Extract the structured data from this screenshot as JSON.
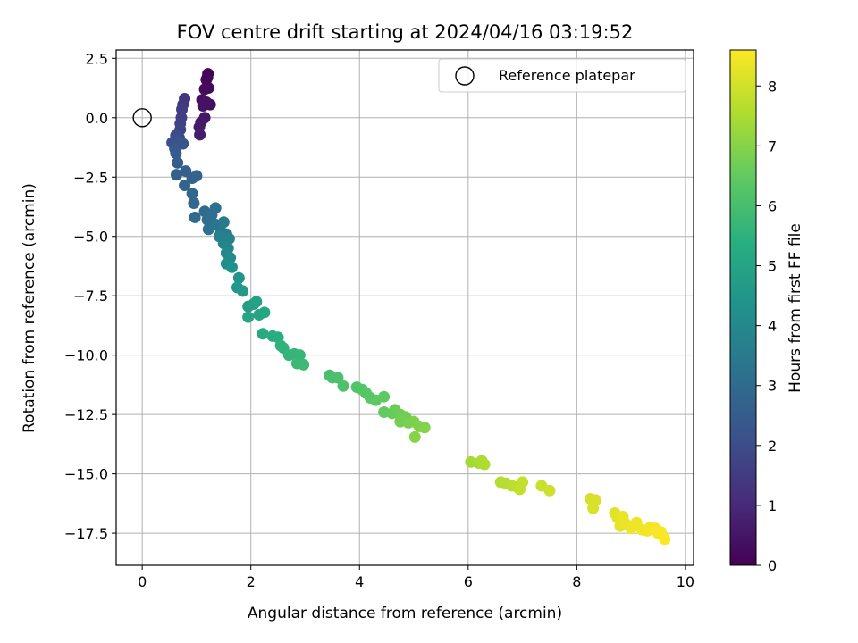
{
  "chart_data": {
    "type": "scatter",
    "title": "FOV centre drift starting at 2024/04/16 03:19:52",
    "xlabel": "Angular distance from reference (arcmin)",
    "ylabel": "Rotation from reference (arcmin)",
    "xlim": [
      -0.48,
      10.15
    ],
    "ylim": [
      -18.85,
      2.85
    ],
    "xticks": [
      0,
      2,
      4,
      6,
      8,
      10
    ],
    "xtick_labels": [
      "0",
      "2",
      "4",
      "6",
      "8",
      "10"
    ],
    "yticks": [
      2.5,
      0,
      -2.5,
      -5,
      -7.5,
      -10,
      -12.5,
      -15,
      -17.5
    ],
    "ytick_labels": [
      "2.5",
      "0.0",
      "−2.5",
      "−5.0",
      "−7.5",
      "−10.0",
      "−12.5",
      "−15.0",
      "−17.5"
    ],
    "grid": true,
    "colormap": "viridis",
    "colorbar": {
      "label": "Hours from first FF file",
      "range": [
        0,
        8.6
      ],
      "ticks": [
        0,
        1,
        2,
        3,
        4,
        5,
        6,
        7,
        8
      ],
      "tick_labels": [
        "0",
        "1",
        "2",
        "3",
        "4",
        "5",
        "6",
        "7",
        "8"
      ]
    },
    "legend": {
      "placement": "top-right",
      "entries": [
        "Reference platepar"
      ]
    },
    "reference_point": {
      "x": 0,
      "y": 0
    },
    "points": [
      {
        "x": 1.21,
        "y": 1.85,
        "t": 0.05
      },
      {
        "x": 1.2,
        "y": 1.7,
        "t": 0.1
      },
      {
        "x": 1.18,
        "y": 1.6,
        "t": 0.15
      },
      {
        "x": 1.22,
        "y": 1.25,
        "t": 0.2
      },
      {
        "x": 1.15,
        "y": 1.2,
        "t": 0.25
      },
      {
        "x": 1.25,
        "y": 0.55,
        "t": 0.3
      },
      {
        "x": 1.1,
        "y": 0.75,
        "t": 0.35
      },
      {
        "x": 1.18,
        "y": 0.65,
        "t": 0.4
      },
      {
        "x": 1.12,
        "y": 0.5,
        "t": 0.45
      },
      {
        "x": 1.15,
        "y": 0.0,
        "t": 0.5
      },
      {
        "x": 1.08,
        "y": -0.2,
        "t": 0.55
      },
      {
        "x": 1.05,
        "y": -0.4,
        "t": 0.6
      },
      {
        "x": 1.06,
        "y": -0.72,
        "t": 0.65
      },
      {
        "x": 0.78,
        "y": 0.8,
        "t": 1.3
      },
      {
        "x": 0.75,
        "y": 0.55,
        "t": 1.4
      },
      {
        "x": 0.73,
        "y": 0.35,
        "t": 1.5
      },
      {
        "x": 0.72,
        "y": 0.0,
        "t": 1.6
      },
      {
        "x": 0.7,
        "y": -0.25,
        "t": 1.7
      },
      {
        "x": 0.7,
        "y": -0.5,
        "t": 1.8
      },
      {
        "x": 0.68,
        "y": -0.85,
        "t": 1.9
      },
      {
        "x": 0.62,
        "y": -0.75,
        "t": 2.0
      },
      {
        "x": 0.55,
        "y": -1.05,
        "t": 2.1
      },
      {
        "x": 0.65,
        "y": -1.0,
        "t": 2.2
      },
      {
        "x": 0.75,
        "y": -1.1,
        "t": 2.3
      },
      {
        "x": 0.6,
        "y": -1.3,
        "t": 2.4
      },
      {
        "x": 0.62,
        "y": -1.5,
        "t": 2.45
      },
      {
        "x": 0.65,
        "y": -1.9,
        "t": 2.5
      },
      {
        "x": 0.8,
        "y": -2.25,
        "t": 2.6
      },
      {
        "x": 0.63,
        "y": -2.4,
        "t": 2.65
      },
      {
        "x": 0.92,
        "y": -2.55,
        "t": 2.7
      },
      {
        "x": 1.0,
        "y": -2.45,
        "t": 2.75
      },
      {
        "x": 0.78,
        "y": -2.85,
        "t": 2.8
      },
      {
        "x": 0.92,
        "y": -3.2,
        "t": 2.85
      },
      {
        "x": 0.95,
        "y": -3.6,
        "t": 2.9
      },
      {
        "x": 0.97,
        "y": -4.2,
        "t": 2.95
      },
      {
        "x": 1.15,
        "y": -3.95,
        "t": 3.0
      },
      {
        "x": 1.2,
        "y": -4.3,
        "t": 3.05
      },
      {
        "x": 1.28,
        "y": -4.1,
        "t": 3.1
      },
      {
        "x": 1.35,
        "y": -3.8,
        "t": 3.15
      },
      {
        "x": 1.22,
        "y": -4.7,
        "t": 3.2
      },
      {
        "x": 1.35,
        "y": -4.5,
        "t": 3.3
      },
      {
        "x": 1.45,
        "y": -4.8,
        "t": 3.4
      },
      {
        "x": 1.5,
        "y": -4.4,
        "t": 3.5
      },
      {
        "x": 1.55,
        "y": -4.9,
        "t": 3.6
      },
      {
        "x": 1.42,
        "y": -5.0,
        "t": 3.7
      },
      {
        "x": 1.6,
        "y": -5.1,
        "t": 3.75
      },
      {
        "x": 1.5,
        "y": -5.3,
        "t": 3.8
      },
      {
        "x": 1.58,
        "y": -5.5,
        "t": 3.9
      },
      {
        "x": 1.55,
        "y": -5.7,
        "t": 4.0
      },
      {
        "x": 1.62,
        "y": -5.9,
        "t": 4.1
      },
      {
        "x": 1.55,
        "y": -6.15,
        "t": 4.2
      },
      {
        "x": 1.65,
        "y": -6.3,
        "t": 4.3
      },
      {
        "x": 1.78,
        "y": -6.75,
        "t": 4.4
      },
      {
        "x": 1.75,
        "y": -7.15,
        "t": 4.5
      },
      {
        "x": 1.85,
        "y": -7.3,
        "t": 4.6
      },
      {
        "x": 1.95,
        "y": -7.95,
        "t": 4.7
      },
      {
        "x": 2.05,
        "y": -7.85,
        "t": 4.8
      },
      {
        "x": 2.1,
        "y": -7.75,
        "t": 4.9
      },
      {
        "x": 1.95,
        "y": -8.4,
        "t": 5.0
      },
      {
        "x": 2.15,
        "y": -8.3,
        "t": 5.05
      },
      {
        "x": 2.25,
        "y": -8.2,
        "t": 5.1
      },
      {
        "x": 2.22,
        "y": -9.1,
        "t": 5.2
      },
      {
        "x": 2.4,
        "y": -9.2,
        "t": 5.3
      },
      {
        "x": 2.5,
        "y": -9.25,
        "t": 5.4
      },
      {
        "x": 2.55,
        "y": -9.6,
        "t": 5.5
      },
      {
        "x": 2.6,
        "y": -9.7,
        "t": 5.55
      },
      {
        "x": 2.7,
        "y": -10.0,
        "t": 5.6
      },
      {
        "x": 2.8,
        "y": -9.95,
        "t": 5.65
      },
      {
        "x": 2.9,
        "y": -10.0,
        "t": 5.7
      },
      {
        "x": 2.85,
        "y": -10.35,
        "t": 5.75
      },
      {
        "x": 2.97,
        "y": -10.4,
        "t": 5.8
      },
      {
        "x": 3.45,
        "y": -10.85,
        "t": 6.0
      },
      {
        "x": 3.5,
        "y": -10.95,
        "t": 6.05
      },
      {
        "x": 3.6,
        "y": -10.95,
        "t": 6.1
      },
      {
        "x": 3.7,
        "y": -11.3,
        "t": 6.15
      },
      {
        "x": 3.95,
        "y": -11.35,
        "t": 6.2
      },
      {
        "x": 4.05,
        "y": -11.45,
        "t": 6.25
      },
      {
        "x": 4.12,
        "y": -11.6,
        "t": 6.3
      },
      {
        "x": 4.2,
        "y": -11.8,
        "t": 6.35
      },
      {
        "x": 4.3,
        "y": -11.9,
        "t": 6.4
      },
      {
        "x": 4.45,
        "y": -11.75,
        "t": 6.45
      },
      {
        "x": 4.45,
        "y": -12.4,
        "t": 6.5
      },
      {
        "x": 4.6,
        "y": -12.45,
        "t": 6.55
      },
      {
        "x": 4.65,
        "y": -12.3,
        "t": 6.6
      },
      {
        "x": 4.75,
        "y": -12.5,
        "t": 6.65
      },
      {
        "x": 4.85,
        "y": -12.6,
        "t": 6.7
      },
      {
        "x": 4.75,
        "y": -12.8,
        "t": 6.75
      },
      {
        "x": 4.9,
        "y": -12.85,
        "t": 6.8
      },
      {
        "x": 5.0,
        "y": -12.8,
        "t": 6.85
      },
      {
        "x": 5.1,
        "y": -13.0,
        "t": 6.9
      },
      {
        "x": 5.2,
        "y": -13.05,
        "t": 6.95
      },
      {
        "x": 5.02,
        "y": -13.45,
        "t": 7.0
      },
      {
        "x": 6.05,
        "y": -14.5,
        "t": 7.4
      },
      {
        "x": 6.2,
        "y": -14.55,
        "t": 7.45
      },
      {
        "x": 6.25,
        "y": -14.45,
        "t": 7.5
      },
      {
        "x": 6.3,
        "y": -14.6,
        "t": 7.55
      },
      {
        "x": 6.6,
        "y": -15.35,
        "t": 7.6
      },
      {
        "x": 6.7,
        "y": -15.4,
        "t": 7.65
      },
      {
        "x": 6.8,
        "y": -15.5,
        "t": 7.7
      },
      {
        "x": 6.9,
        "y": -15.55,
        "t": 7.75
      },
      {
        "x": 6.95,
        "y": -15.65,
        "t": 7.8
      },
      {
        "x": 7.0,
        "y": -15.35,
        "t": 7.85
      },
      {
        "x": 7.35,
        "y": -15.5,
        "t": 7.9
      },
      {
        "x": 7.5,
        "y": -15.7,
        "t": 7.95
      },
      {
        "x": 8.25,
        "y": -16.05,
        "t": 8.05
      },
      {
        "x": 8.3,
        "y": -16.45,
        "t": 8.1
      },
      {
        "x": 8.35,
        "y": -16.1,
        "t": 8.12
      },
      {
        "x": 8.7,
        "y": -16.65,
        "t": 8.2
      },
      {
        "x": 8.75,
        "y": -16.85,
        "t": 8.25
      },
      {
        "x": 8.8,
        "y": -17.2,
        "t": 8.3
      },
      {
        "x": 8.85,
        "y": -16.8,
        "t": 8.32
      },
      {
        "x": 8.9,
        "y": -17.1,
        "t": 8.35
      },
      {
        "x": 9.0,
        "y": -17.3,
        "t": 8.38
      },
      {
        "x": 9.1,
        "y": -17.05,
        "t": 8.4
      },
      {
        "x": 9.2,
        "y": -17.35,
        "t": 8.42
      },
      {
        "x": 9.3,
        "y": -17.4,
        "t": 8.45
      },
      {
        "x": 9.35,
        "y": -17.25,
        "t": 8.48
      },
      {
        "x": 9.45,
        "y": -17.3,
        "t": 8.5
      },
      {
        "x": 9.5,
        "y": -17.5,
        "t": 8.52
      },
      {
        "x": 9.55,
        "y": -17.45,
        "t": 8.55
      },
      {
        "x": 9.62,
        "y": -17.75,
        "t": 8.6
      }
    ]
  }
}
